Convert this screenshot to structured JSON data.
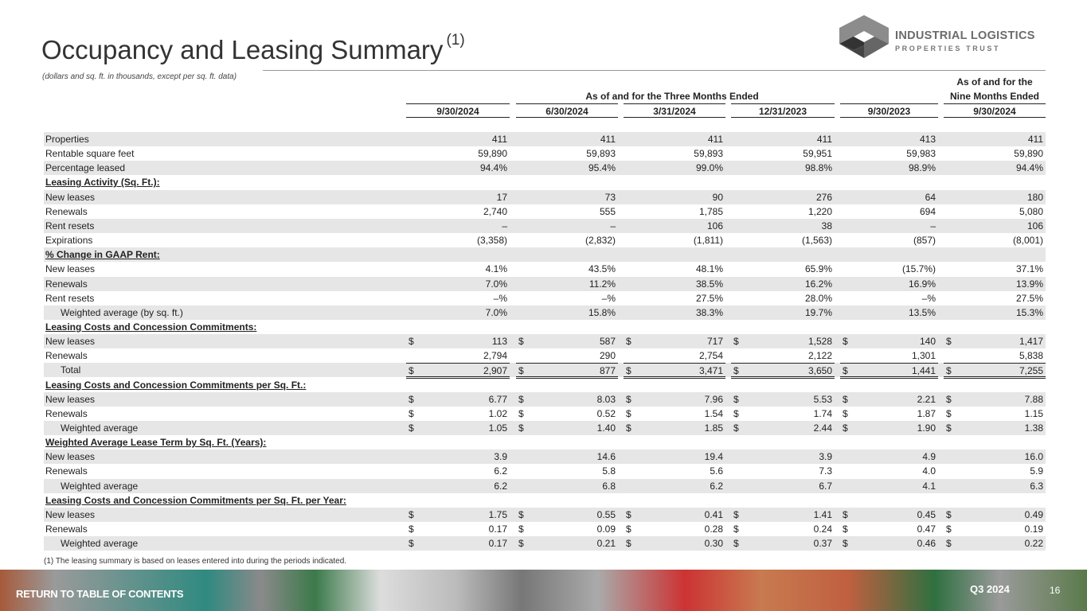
{
  "title": "Occupancy and Leasing Summary",
  "title_footnote": "(1)",
  "subtitle": "(dollars and sq. ft. in thousands, except per sq. ft. data)",
  "logo": {
    "line1": "INDUSTRIAL LOGISTICS",
    "line2": "PROPERTIES TRUST"
  },
  "headers": {
    "group1": "As of and for the Three Months Ended",
    "group2_line1": "As of and for the",
    "group2_line2": "Nine Months Ended",
    "columns": [
      "9/30/2024",
      "6/30/2024",
      "3/31/2024",
      "12/31/2023",
      "9/30/2023",
      "9/30/2024"
    ]
  },
  "rows": [
    {
      "label": "Properties",
      "values": [
        "411",
        "411",
        "411",
        "411",
        "413",
        "411"
      ]
    },
    {
      "label": "Rentable square feet",
      "values": [
        "59,890",
        "59,893",
        "59,893",
        "59,951",
        "59,983",
        "59,890"
      ]
    },
    {
      "label": "Percentage leased",
      "values": [
        "94.4%",
        "95.4%",
        "99.0%",
        "98.8%",
        "98.9%",
        "94.4%"
      ]
    },
    {
      "label": "Leasing Activity (Sq. Ft.):",
      "section": true
    },
    {
      "label": "New leases",
      "values": [
        "17",
        "73",
        "90",
        "276",
        "64",
        "180"
      ]
    },
    {
      "label": "Renewals",
      "values": [
        "2,740",
        "555",
        "1,785",
        "1,220",
        "694",
        "5,080"
      ]
    },
    {
      "label": "Rent resets",
      "values": [
        "–",
        "–",
        "106",
        "38",
        "–",
        "106"
      ]
    },
    {
      "label": "Expirations",
      "values": [
        "(3,358)",
        "(2,832)",
        "(1,811)",
        "(1,563)",
        "(857)",
        "(8,001)"
      ]
    },
    {
      "label": "% Change in GAAP Rent:",
      "section": true
    },
    {
      "label": "New leases",
      "values": [
        "4.1%",
        "43.5%",
        "48.1%",
        "65.9%",
        "(15.7%)",
        "37.1%"
      ]
    },
    {
      "label": "Renewals",
      "values": [
        "7.0%",
        "11.2%",
        "38.5%",
        "16.2%",
        "16.9%",
        "13.9%"
      ]
    },
    {
      "label": "Rent resets",
      "values": [
        "–%",
        "–%",
        "27.5%",
        "28.0%",
        "–%",
        "27.5%"
      ]
    },
    {
      "label": "Weighted average (by sq. ft.)",
      "indent": true,
      "values": [
        "7.0%",
        "15.8%",
        "38.3%",
        "19.7%",
        "13.5%",
        "15.3%"
      ]
    },
    {
      "label": "Leasing Costs and Concession Commitments:",
      "section": true
    },
    {
      "label": "New leases",
      "currency": "$",
      "values": [
        "113",
        "587",
        "717",
        "1,528",
        "140",
        "1,417"
      ]
    },
    {
      "label": "Renewals",
      "values": [
        "2,794",
        "290",
        "2,754",
        "2,122",
        "1,301",
        "5,838"
      ]
    },
    {
      "label": "Total",
      "indent": true,
      "total": true,
      "currency": "$",
      "values": [
        "2,907",
        "877",
        "3,471",
        "3,650",
        "1,441",
        "7,255"
      ]
    },
    {
      "label": "Leasing Costs and Concession Commitments per Sq. Ft.:",
      "section": true
    },
    {
      "label": "New leases",
      "currency": "$",
      "values": [
        "6.77",
        "8.03",
        "7.96",
        "5.53",
        "2.21",
        "7.88"
      ]
    },
    {
      "label": "Renewals",
      "currency": "$",
      "values": [
        "1.02",
        "0.52",
        "1.54",
        "1.74",
        "1.87",
        "1.15"
      ]
    },
    {
      "label": "Weighted average",
      "indent": true,
      "currency": "$",
      "values": [
        "1.05",
        "1.40",
        "1.85",
        "2.44",
        "1.90",
        "1.38"
      ]
    },
    {
      "label": "Weighted Average Lease Term by Sq. Ft. (Years):",
      "section": true
    },
    {
      "label": "New leases",
      "values": [
        "3.9",
        "14.6",
        "19.4",
        "3.9",
        "4.9",
        "16.0"
      ]
    },
    {
      "label": "Renewals",
      "values": [
        "6.2",
        "5.8",
        "5.6",
        "7.3",
        "4.0",
        "5.9"
      ]
    },
    {
      "label": "Weighted average",
      "indent": true,
      "values": [
        "6.2",
        "6.8",
        "6.2",
        "6.7",
        "4.1",
        "6.3"
      ]
    },
    {
      "label": "Leasing Costs and Concession Commitments per Sq. Ft. per Year:",
      "section": true
    },
    {
      "label": "New leases",
      "currency": "$",
      "values": [
        "1.75",
        "0.55",
        "0.41",
        "1.41",
        "0.45",
        "0.49"
      ]
    },
    {
      "label": "Renewals",
      "currency": "$",
      "values": [
        "0.17",
        "0.09",
        "0.28",
        "0.24",
        "0.47",
        "0.19"
      ]
    },
    {
      "label": "Weighted average",
      "indent": true,
      "currency": "$",
      "values": [
        "0.17",
        "0.21",
        "0.30",
        "0.37",
        "0.46",
        "0.22"
      ]
    }
  ],
  "footnote": "(1)   The leasing summary is based on leases entered into during the periods indicated.",
  "footer": {
    "return_link": "RETURN TO TABLE OF CONTENTS",
    "period": "Q3 2024",
    "page": "16"
  }
}
